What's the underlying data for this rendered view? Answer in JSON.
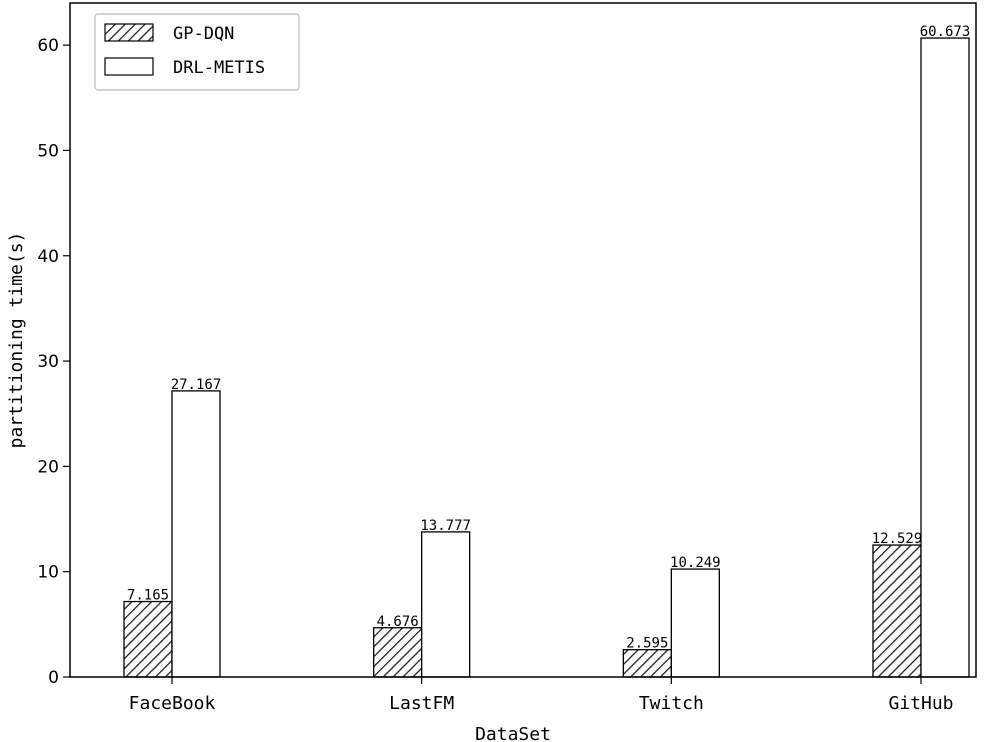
{
  "chart_data": {
    "type": "bar",
    "title": "",
    "xlabel": "DataSet",
    "ylabel": "partitioning time(s)",
    "categories": [
      "FaceBook",
      "LastFM",
      "Twitch",
      "GitHub"
    ],
    "series": [
      {
        "name": "GP-DQN",
        "values": [
          7.165,
          4.676,
          2.595,
          12.529
        ],
        "labels": [
          "7.165",
          "4.676",
          "2.595",
          "12.529"
        ],
        "fill": "hatched",
        "color": "#ffffff",
        "hatch_color": "#000000"
      },
      {
        "name": "DRL-METIS",
        "values": [
          27.167,
          13.777,
          10.249,
          60.673
        ],
        "labels": [
          "27.167",
          "13.777",
          "10.249",
          "60.673"
        ],
        "fill": "solid",
        "color": "#ffffff"
      }
    ],
    "ylim": [
      0,
      64
    ],
    "yticks": [
      0,
      10,
      20,
      30,
      40,
      50,
      60
    ],
    "grid": false,
    "legend": "top-left"
  }
}
